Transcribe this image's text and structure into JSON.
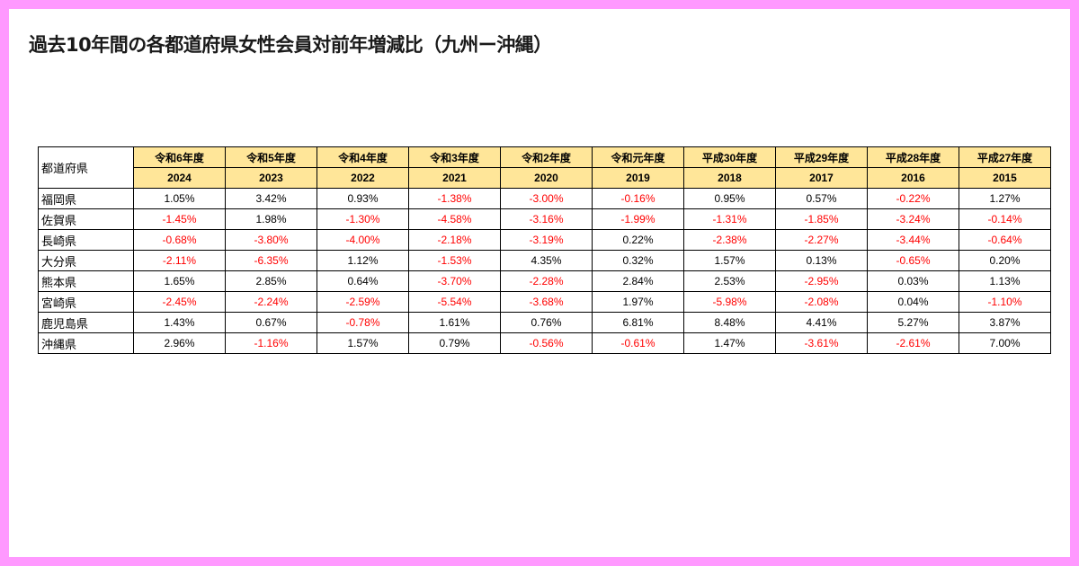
{
  "title": "過去10年間の各都道府県女性会員対前年増減比（九州ー沖縄）",
  "table": {
    "corner_label": "都道府県",
    "eras": [
      "令和6年度",
      "令和5年度",
      "令和4年度",
      "令和3年度",
      "令和2年度",
      "令和元年度",
      "平成30年度",
      "平成29年度",
      "平成28年度",
      "平成27年度"
    ],
    "years": [
      "2024",
      "2023",
      "2022",
      "2021",
      "2020",
      "2019",
      "2018",
      "2017",
      "2016",
      "2015"
    ],
    "rows": [
      {
        "pref": "福岡県",
        "values": [
          "1.05%",
          "3.42%",
          "0.93%",
          "-1.38%",
          "-3.00%",
          "-0.16%",
          "0.95%",
          "0.57%",
          "-0.22%",
          "1.27%"
        ]
      },
      {
        "pref": "佐賀県",
        "values": [
          "-1.45%",
          "1.98%",
          "-1.30%",
          "-4.58%",
          "-3.16%",
          "-1.99%",
          "-1.31%",
          "-1.85%",
          "-3.24%",
          "-0.14%"
        ]
      },
      {
        "pref": "長崎県",
        "values": [
          "-0.68%",
          "-3.80%",
          "-4.00%",
          "-2.18%",
          "-3.19%",
          "0.22%",
          "-2.38%",
          "-2.27%",
          "-3.44%",
          "-0.64%"
        ]
      },
      {
        "pref": "大分県",
        "values": [
          "-2.11%",
          "-6.35%",
          "1.12%",
          "-1.53%",
          "4.35%",
          "0.32%",
          "1.57%",
          "0.13%",
          "-0.65%",
          "0.20%"
        ]
      },
      {
        "pref": "熊本県",
        "values": [
          "1.65%",
          "2.85%",
          "0.64%",
          "-3.70%",
          "-2.28%",
          "2.84%",
          "2.53%",
          "-2.95%",
          "0.03%",
          "1.13%"
        ]
      },
      {
        "pref": "宮崎県",
        "values": [
          "-2.45%",
          "-2.24%",
          "-2.59%",
          "-5.54%",
          "-3.68%",
          "1.97%",
          "-5.98%",
          "-2.08%",
          "0.04%",
          "-1.10%"
        ]
      },
      {
        "pref": "鹿児島県",
        "values": [
          "1.43%",
          "0.67%",
          "-0.78%",
          "1.61%",
          "0.76%",
          "6.81%",
          "8.48%",
          "4.41%",
          "5.27%",
          "3.87%"
        ]
      },
      {
        "pref": "沖縄県",
        "values": [
          "2.96%",
          "-1.16%",
          "1.57%",
          "0.79%",
          "-0.56%",
          "-0.61%",
          "1.47%",
          "-3.61%",
          "-2.61%",
          "7.00%"
        ]
      }
    ]
  },
  "colors": {
    "page_background": "#ff99ff",
    "header_fill": "#ffe699",
    "negative_text": "#ff0000",
    "positive_text": "#000000"
  }
}
